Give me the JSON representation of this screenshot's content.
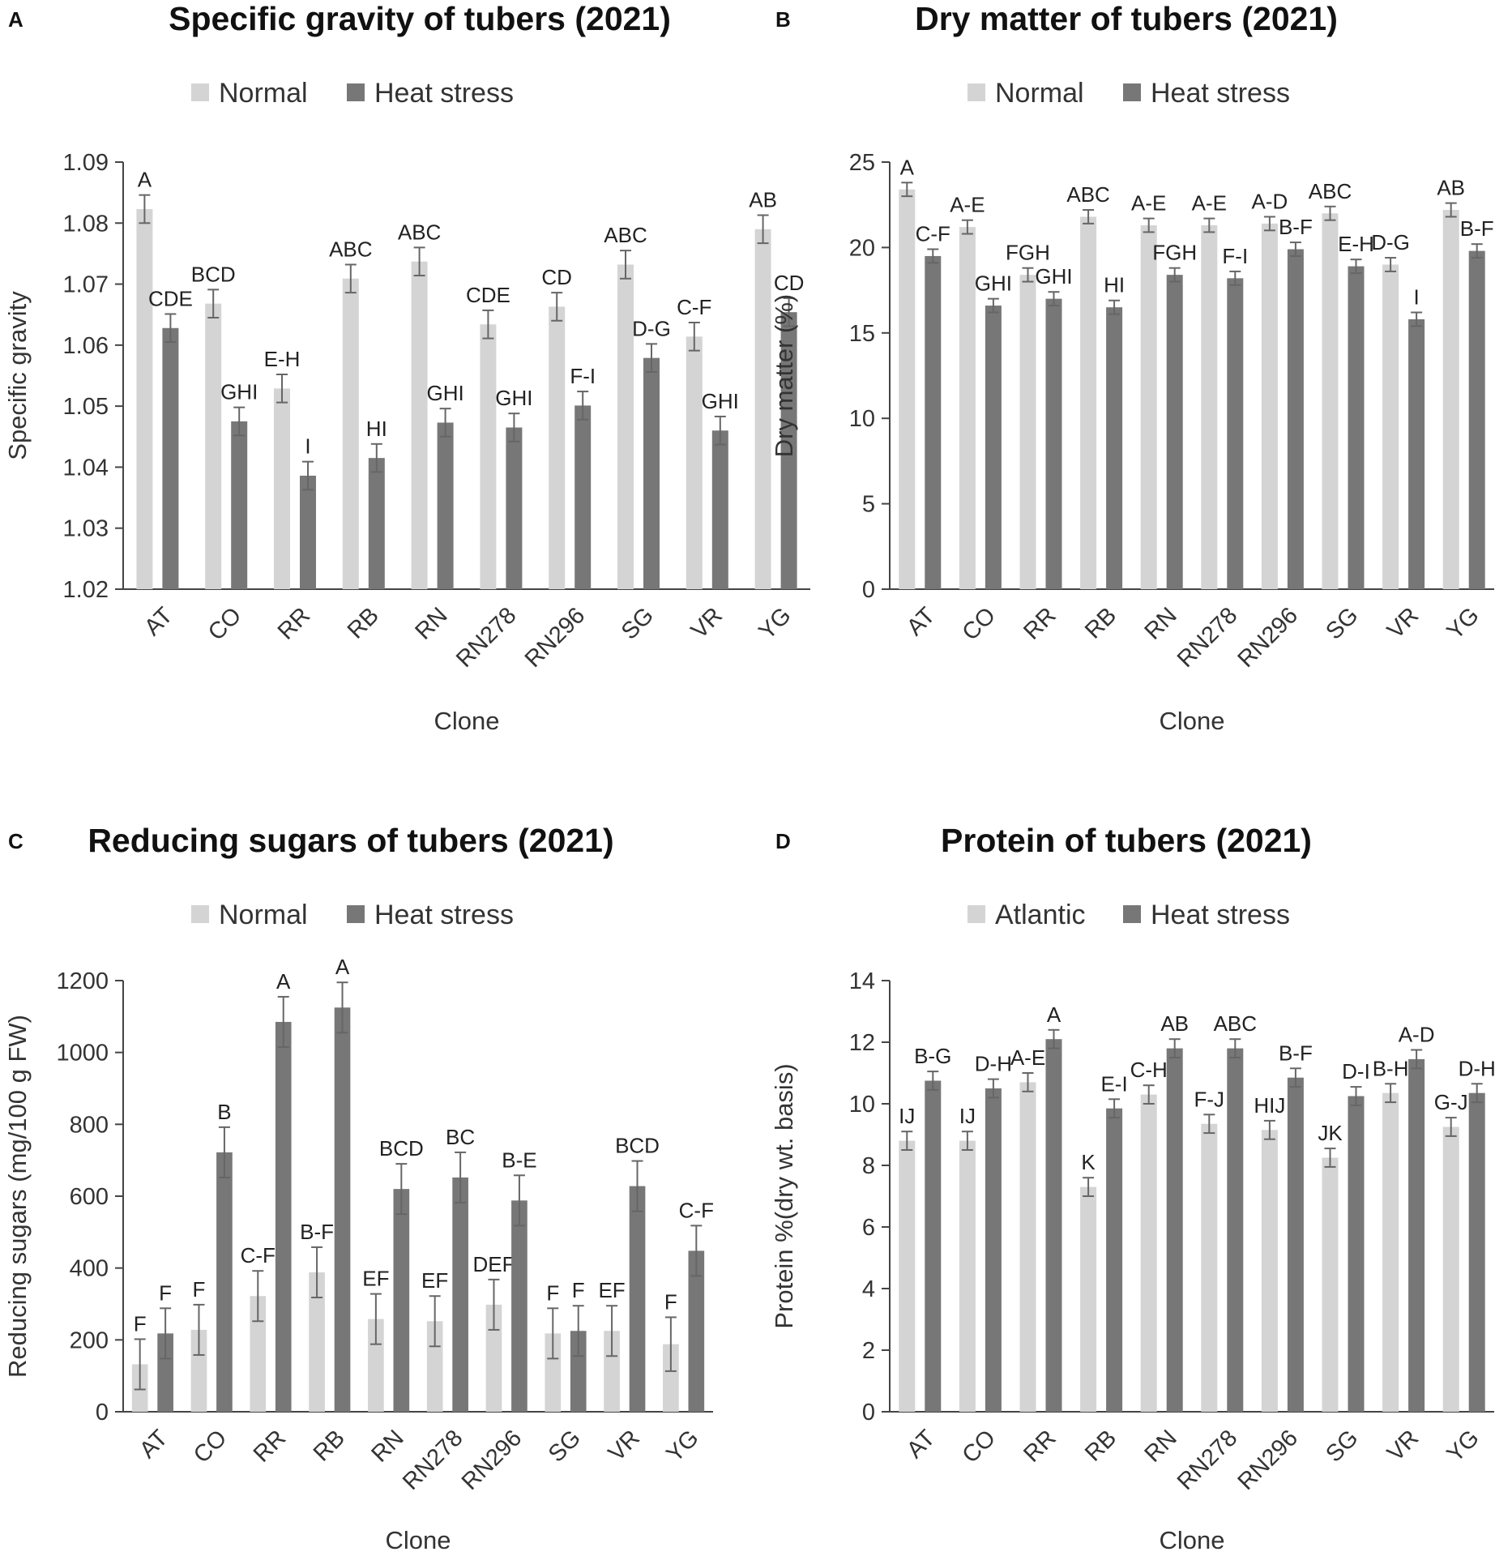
{
  "chart_data": [
    {
      "panel": "A",
      "type": "bar",
      "title": "Specific gravity of tubers (2021)",
      "xlabel": "Clone",
      "ylabel": "Specific gravity",
      "ylim": [
        1.02,
        1.09
      ],
      "yticks": [
        1.02,
        1.03,
        1.04,
        1.05,
        1.06,
        1.07,
        1.08,
        1.09
      ],
      "ytick_labels": [
        "1.02",
        "1.03",
        "1.04",
        "1.05",
        "1.06",
        "1.07",
        "1.08",
        "1.09"
      ],
      "legend_position": "top",
      "categories": [
        "AT",
        "CO",
        "RR",
        "RB",
        "RN",
        "RN278",
        "RN296",
        "SG",
        "VR",
        "YG"
      ],
      "series": [
        {
          "name": "Normal",
          "color": "#d4d4d4",
          "values": [
            1.0823,
            1.0668,
            1.0529,
            1.0709,
            1.0737,
            1.0634,
            1.0663,
            1.0732,
            1.0614,
            1.079
          ],
          "errors": [
            0.0023,
            0.0023,
            0.0023,
            0.0023,
            0.0023,
            0.0023,
            0.0023,
            0.0023,
            0.0023,
            0.0023
          ],
          "labels": [
            "A",
            "BCD",
            "E-H",
            "ABC",
            "ABC",
            "CDE",
            "CD",
            "ABC",
            "C-F",
            "AB"
          ]
        },
        {
          "name": "Heat stress",
          "color": "#777777",
          "values": [
            1.0628,
            1.0475,
            1.0386,
            1.0415,
            1.0473,
            1.0465,
            1.0501,
            1.0579,
            1.046,
            1.0654
          ],
          "errors": [
            0.0023,
            0.0023,
            0.0023,
            0.0023,
            0.0023,
            0.0023,
            0.0023,
            0.0023,
            0.0023,
            0.0023
          ],
          "labels": [
            "CDE",
            "GHI",
            "I",
            "HI",
            "GHI",
            "GHI",
            "F-I",
            "D-G",
            "GHI",
            "CD"
          ]
        }
      ]
    },
    {
      "panel": "B",
      "type": "bar",
      "title": "Dry matter of tubers (2021)",
      "xlabel": "Clone",
      "ylabel": "Dry matter (%)",
      "ylim": [
        0,
        25
      ],
      "yticks": [
        0,
        5,
        10,
        15,
        20,
        25
      ],
      "ytick_labels": [
        "0",
        "5",
        "10",
        "15",
        "20",
        "25"
      ],
      "legend_position": "top",
      "categories": [
        "AT",
        "CO",
        "RR",
        "RB",
        "RN",
        "RN278",
        "RN296",
        "SG",
        "VR",
        "YG"
      ],
      "series": [
        {
          "name": "Normal",
          "color": "#d4d4d4",
          "values": [
            23.4,
            21.2,
            18.4,
            21.8,
            21.3,
            21.3,
            21.4,
            22.0,
            19.0,
            22.2
          ],
          "errors": [
            0.4,
            0.4,
            0.4,
            0.4,
            0.4,
            0.4,
            0.4,
            0.4,
            0.4,
            0.4
          ],
          "labels": [
            "A",
            "A-E",
            "FGH",
            "ABC",
            "A-E",
            "A-E",
            "A-D",
            "ABC",
            "D-G",
            "AB"
          ]
        },
        {
          "name": "Heat stress",
          "color": "#777777",
          "values": [
            19.5,
            16.6,
            17.0,
            16.5,
            18.4,
            18.2,
            19.9,
            18.9,
            15.8,
            19.8
          ],
          "errors": [
            0.4,
            0.4,
            0.4,
            0.4,
            0.4,
            0.4,
            0.4,
            0.4,
            0.4,
            0.4
          ],
          "labels": [
            "C-F",
            "GHI",
            "GHI",
            "HI",
            "FGH",
            "F-I",
            "B-F",
            "E-H",
            "I",
            "B-F"
          ]
        }
      ]
    },
    {
      "panel": "C",
      "type": "bar",
      "title": "Reducing sugars of tubers (2021)",
      "xlabel": "Clone",
      "ylabel": "Reducing sugars (mg/100 g FW)",
      "ylim": [
        0,
        1200
      ],
      "yticks": [
        0,
        200,
        400,
        600,
        800,
        1000,
        1200
      ],
      "ytick_labels": [
        "0",
        "200",
        "400",
        "600",
        "800",
        "1000",
        "1200"
      ],
      "legend_position": "top",
      "categories": [
        "AT",
        "CO",
        "RR",
        "RB",
        "RN",
        "RN278",
        "RN296",
        "SG",
        "VR",
        "YG"
      ],
      "series": [
        {
          "name": "Normal",
          "color": "#d4d4d4",
          "values": [
            132,
            228,
            322,
            388,
            258,
            252,
            298,
            218,
            225,
            188
          ],
          "errors": [
            70,
            70,
            70,
            70,
            70,
            70,
            70,
            70,
            70,
            75
          ],
          "labels": [
            "F",
            "F",
            "C-F",
            "B-F",
            "EF",
            "EF",
            "DEF",
            "F",
            "EF",
            "F"
          ]
        },
        {
          "name": "Heat stress",
          "color": "#777777",
          "values": [
            218,
            722,
            1085,
            1125,
            620,
            652,
            588,
            225,
            628,
            448
          ],
          "errors": [
            70,
            70,
            70,
            70,
            70,
            70,
            70,
            70,
            70,
            70
          ],
          "labels": [
            "F",
            "B",
            "A",
            "A",
            "BCD",
            "BC",
            "B-E",
            "F",
            "BCD",
            "C-F"
          ]
        }
      ]
    },
    {
      "panel": "D",
      "type": "bar",
      "title": "Protein of tubers (2021)",
      "xlabel": "Clone",
      "ylabel": "Protein %(dry wt. basis)",
      "ylim": [
        0,
        14
      ],
      "yticks": [
        0,
        2,
        4,
        6,
        8,
        10,
        12,
        14
      ],
      "ytick_labels": [
        "0",
        "2",
        "4",
        "6",
        "8",
        "10",
        "12",
        "14"
      ],
      "legend_position": "top",
      "categories": [
        "AT",
        "CO",
        "RR",
        "RB",
        "RN",
        "RN278",
        "RN296",
        "SG",
        "VR",
        "YG"
      ],
      "series": [
        {
          "name": "Atlantic",
          "color": "#d4d4d4",
          "values": [
            8.8,
            8.8,
            10.7,
            7.3,
            10.3,
            9.35,
            9.15,
            8.25,
            10.35,
            9.25
          ],
          "errors": [
            0.3,
            0.3,
            0.3,
            0.3,
            0.3,
            0.3,
            0.3,
            0.3,
            0.3,
            0.3
          ],
          "labels": [
            "IJ",
            "IJ",
            "A-E",
            "K",
            "C-H",
            "F-J",
            "HIJ",
            "JK",
            "B-H",
            "G-J"
          ]
        },
        {
          "name": "Heat stress",
          "color": "#777777",
          "values": [
            10.75,
            10.5,
            12.1,
            9.85,
            11.8,
            11.8,
            10.85,
            10.25,
            11.45,
            10.35
          ],
          "errors": [
            0.3,
            0.3,
            0.3,
            0.3,
            0.3,
            0.3,
            0.3,
            0.3,
            0.3,
            0.3
          ],
          "labels": [
            "B-G",
            "D-H",
            "A",
            "E-I",
            "AB",
            "ABC",
            "B-F",
            "D-I",
            "A-D",
            "D-H"
          ]
        }
      ]
    }
  ]
}
